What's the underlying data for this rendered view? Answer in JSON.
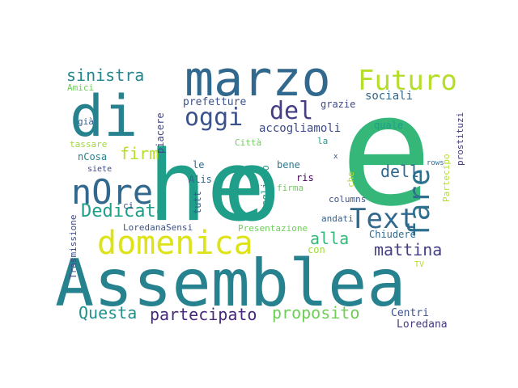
{
  "cloud": {
    "words": [
      {
        "text": "he",
        "color": "#1f9e89",
        "rotated": false
      },
      {
        "text": "o",
        "color": "#1f9e89",
        "rotated": false
      },
      {
        "text": "e",
        "color": "#35b779",
        "rotated": false
      },
      {
        "text": "Assemblea",
        "color": "#26828e",
        "rotated": false
      },
      {
        "text": "marzo",
        "color": "#31688e",
        "rotated": false
      },
      {
        "text": "di",
        "color": "#26828e",
        "rotated": false
      },
      {
        "text": "domenica",
        "color": "#dde318",
        "rotated": false
      },
      {
        "text": "nOre",
        "color": "#31688e",
        "rotated": false
      },
      {
        "text": "Futuro",
        "color": "#b5de2b",
        "rotated": false
      },
      {
        "text": "oggi",
        "color": "#3b528b",
        "rotated": false
      },
      {
        "text": "del",
        "color": "#433e85",
        "rotated": false
      },
      {
        "text": "fare",
        "color": "#2c728e",
        "rotated": true
      },
      {
        "text": "Text",
        "color": "#31688e",
        "rotated": false
      },
      {
        "text": "sinistra",
        "color": "#25848e",
        "rotated": false
      },
      {
        "text": "Dedicato",
        "color": "#1f9e89",
        "rotated": false
      },
      {
        "text": "firm",
        "color": "#b5de2b",
        "rotated": false
      },
      {
        "text": "dell",
        "color": "#31688e",
        "rotated": false
      },
      {
        "text": "alla",
        "color": "#35b779",
        "rotated": false
      },
      {
        "text": "mattina",
        "color": "#433e85",
        "rotated": false
      },
      {
        "text": "Questa",
        "color": "#21918c",
        "rotated": false
      },
      {
        "text": "partecipato",
        "color": "#482878",
        "rotated": false
      },
      {
        "text": "proposito",
        "color": "#6ece58",
        "rotated": false
      },
      {
        "text": "accogliamoli",
        "color": "#3e4989",
        "rotated": false
      },
      {
        "text": "prefetture",
        "color": "#3b528b",
        "rotated": false
      },
      {
        "text": "grazie",
        "color": "#3e4989",
        "rotated": false
      },
      {
        "text": "sociali",
        "color": "#31688e",
        "rotated": false
      },
      {
        "text": "Partecipo",
        "color": "#b5de2b",
        "rotated": true
      },
      {
        "text": "prostituzi",
        "color": "#443983",
        "rotated": true
      },
      {
        "text": "piacere",
        "color": "#414487",
        "rotated": true
      },
      {
        "text": "quale",
        "color": "#1f9e89",
        "rotated": false
      },
      {
        "text": "Città",
        "color": "#6ece58",
        "rotated": false
      },
      {
        "text": "la",
        "color": "#1f9e89",
        "rotated": false
      },
      {
        "text": "nCosa",
        "color": "#26828e",
        "rotated": false
      },
      {
        "text": "tassare",
        "color": "#a0da39",
        "rotated": false
      },
      {
        "text": "già",
        "color": "#355f8d",
        "rotated": false
      },
      {
        "text": "Amici",
        "color": "#6ece58",
        "rotated": false
      },
      {
        "text": "le",
        "color": "#31688e",
        "rotated": false
      },
      {
        "text": "bene",
        "color": "#2a788e",
        "rotated": false
      },
      {
        "text": "ris",
        "color": "#440154",
        "rotated": false
      },
      {
        "text": "x",
        "color": "#3b528b",
        "rotated": false
      },
      {
        "text": "rows",
        "color": "#31688e",
        "rotated": false
      },
      {
        "text": "siete",
        "color": "#3e4989",
        "rotated": false
      },
      {
        "text": "Alis",
        "color": "#31688e",
        "rotated": false
      },
      {
        "text": "tutt",
        "color": "#355f8d",
        "rotated": true
      },
      {
        "text": "vogliono",
        "color": "#1f9e89",
        "rotated": true
      },
      {
        "text": "firma",
        "color": "#6ece58",
        "rotated": false
      },
      {
        "text": "che",
        "color": "#b5de2b",
        "rotated": true
      },
      {
        "text": "columns",
        "color": "#3b528b",
        "rotated": false
      },
      {
        "text": "ci",
        "color": "#3e4989",
        "rotated": false
      },
      {
        "text": "LoredanaSensi",
        "color": "#3b528b",
        "rotated": false
      },
      {
        "text": "andati",
        "color": "#355f8d",
        "rotated": false
      },
      {
        "text": "Trasmissione",
        "color": "#3e4989",
        "rotated": true
      },
      {
        "text": "Presentazione",
        "color": "#6ece58",
        "rotated": false
      },
      {
        "text": "Chiudere",
        "color": "#31688e",
        "rotated": false
      },
      {
        "text": "con",
        "color": "#a0da39",
        "rotated": false
      },
      {
        "text": "TV",
        "color": "#b5de2b",
        "rotated": false
      },
      {
        "text": "Centri",
        "color": "#3b528b",
        "rotated": false
      },
      {
        "text": "Loredana",
        "color": "#443983",
        "rotated": false
      }
    ]
  }
}
